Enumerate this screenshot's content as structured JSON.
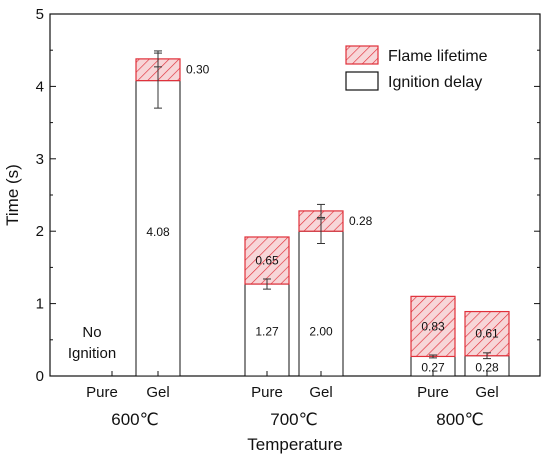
{
  "chart_data": {
    "type": "bar",
    "stacked": true,
    "ylabel": "Time (s)",
    "xlabel": "Temperature",
    "ylim": [
      0,
      5
    ],
    "yticks": [
      "0",
      "1",
      "2",
      "3",
      "4",
      "5"
    ],
    "x_groups": [
      "600℃",
      "700℃",
      "800℃"
    ],
    "categories": [
      "Pure",
      "Gel",
      "Pure",
      "Gel",
      "Pure",
      "Gel"
    ],
    "legend": {
      "position": "top-right",
      "entries": [
        "Flame lifetime",
        "Ignition delay"
      ]
    },
    "series": [
      {
        "name": "Ignition delay",
        "color": "#ffffff",
        "values": [
          null,
          4.08,
          1.27,
          2.0,
          0.27,
          0.28
        ],
        "labels": [
          "",
          "4.08",
          "1.27",
          "2.00",
          "0.27",
          "0.28"
        ],
        "error": [
          null,
          0.38,
          0.07,
          0.17,
          0.02,
          0.04
        ]
      },
      {
        "name": "Flame lifetime",
        "color": "#e0303a",
        "values": [
          null,
          0.3,
          0.65,
          0.28,
          0.83,
          0.61
        ],
        "labels": [
          "",
          "0.30",
          "0.65",
          "0.28",
          "0.83",
          "0.61"
        ],
        "error": [
          null,
          0.11,
          null,
          0.09,
          null,
          null
        ]
      }
    ],
    "annotations": [
      {
        "text_lines": [
          "No",
          "Ignition"
        ],
        "category_index": 0
      }
    ]
  }
}
